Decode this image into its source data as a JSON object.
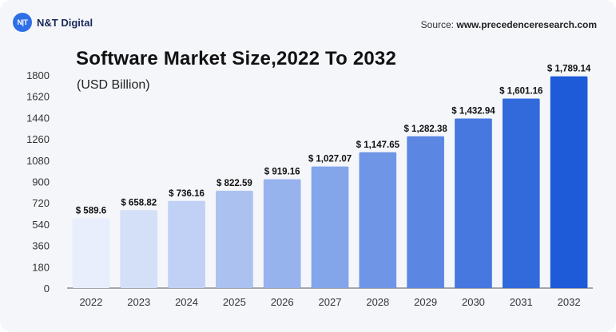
{
  "brand": {
    "logo_mark": "N|T",
    "name": "N&T Digital"
  },
  "source": {
    "prefix": "Source:",
    "url": "www.precedenceresearch.com"
  },
  "colors": {
    "bar_start": "#e8eefc",
    "bar_end": "#1e5bd8",
    "accent": "#2f6fe6"
  },
  "chart_data": {
    "type": "bar",
    "title": "Software Market Size,2022 To 2032",
    "subtitle": "(USD Billion)",
    "xlabel": "",
    "ylabel": "",
    "categories": [
      "2022",
      "2023",
      "2024",
      "2025",
      "2026",
      "2027",
      "2028",
      "2029",
      "2030",
      "2031",
      "2032"
    ],
    "values": [
      589.6,
      658.82,
      736.16,
      822.59,
      919.16,
      1027.07,
      1147.65,
      1282.38,
      1432.94,
      1601.16,
      1789.14
    ],
    "value_labels": [
      "$ 589.6",
      "$ 658.82",
      "$ 736.16",
      "$ 822.59",
      "$ 919.16",
      "$ 1,027.07",
      "$ 1,147.65",
      "$ 1,282.38",
      "$ 1,432.94",
      "$ 1,601.16",
      "$ 1,789.14"
    ],
    "yticks": [
      0,
      180,
      360,
      540,
      720,
      900,
      1080,
      1260,
      1440,
      1620,
      1800
    ],
    "ylim": [
      0,
      1800
    ],
    "grid": false,
    "legend": "none"
  }
}
